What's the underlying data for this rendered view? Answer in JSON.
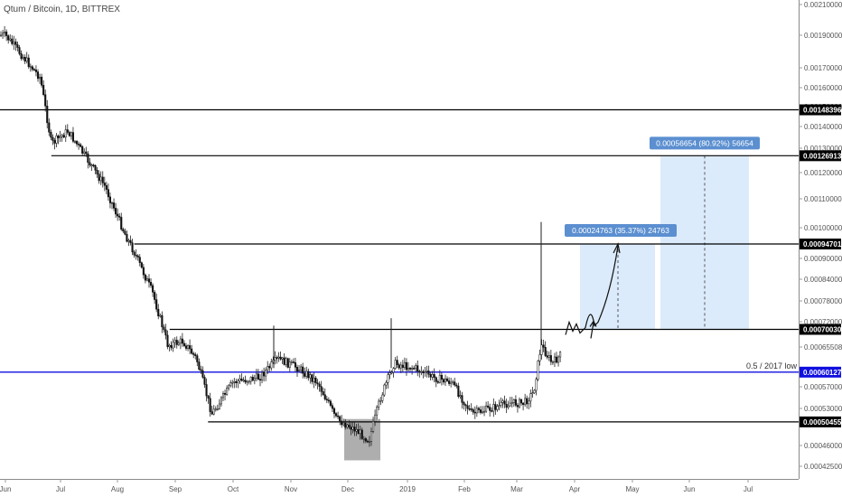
{
  "header": {
    "title": "Qtum / Bitcoin, 1D, BITTREX"
  },
  "chart_data": {
    "type": "candlestick",
    "title": "Qtum / Bitcoin, 1D, BITTREX",
    "x_ticks": [
      "Jun",
      "Jul",
      "Aug",
      "Sep",
      "Oct",
      "Nov",
      "Dec",
      "2019",
      "Feb",
      "Mar",
      "Apr",
      "May",
      "Jun",
      "Jul"
    ],
    "y_ticks": [
      "0.00210000",
      "0.00190000",
      "0.00170000",
      "0.00160000",
      "0.00150000",
      "0.00140000",
      "0.00130000",
      "0.00120000",
      "0.00110000",
      "0.00100000",
      "0.00090000",
      "0.00084000",
      "0.00078000",
      "0.00072000",
      "0.00065508",
      "0.00057000",
      "0.00053000",
      "0.00046000",
      "0.00042500"
    ],
    "levels": [
      {
        "label": "0.00148396",
        "y": 0.00148396,
        "color": "#000000",
        "start": "Jun"
      },
      {
        "label": "0.00126913",
        "y": 0.00126913,
        "color": "#000000",
        "start": "Jul"
      },
      {
        "label": "0.00094701",
        "y": 0.00094701,
        "color": "#000000",
        "start": "Aug"
      },
      {
        "label": "0.00070030",
        "y": 0.0007003,
        "color": "#000000",
        "start": "Sep"
      },
      {
        "label": "0.00060127",
        "y": 0.00060127,
        "color": "#1010e0",
        "start": "Jun"
      },
      {
        "label": "0.00050455",
        "y": 0.00050455,
        "color": "#000000",
        "start": "Sep"
      }
    ],
    "annotations": {
      "level_note": "0.5 / 2017 low",
      "target1": "0.00024763 (35.37%) 24763",
      "target2": "0.00056654 (80.92%) 56654"
    },
    "series": [
      {
        "x": "2018-06-01",
        "close": 0.0019
      },
      {
        "x": "2018-06-20",
        "close": 0.00165
      },
      {
        "x": "2018-06-26",
        "close": 0.00132
      },
      {
        "x": "2018-07-05",
        "close": 0.00138
      },
      {
        "x": "2018-07-15",
        "close": 0.00126
      },
      {
        "x": "2018-07-25",
        "close": 0.00115
      },
      {
        "x": "2018-08-05",
        "close": 0.00098
      },
      {
        "x": "2018-08-10",
        "close": 0.00092
      },
      {
        "x": "2018-08-20",
        "close": 0.0008
      },
      {
        "x": "2018-08-28",
        "close": 0.00066
      },
      {
        "x": "2018-09-05",
        "close": 0.00067
      },
      {
        "x": "2018-09-12",
        "close": 0.00063
      },
      {
        "x": "2018-09-20",
        "close": 0.00052
      },
      {
        "x": "2018-10-01",
        "close": 0.00058
      },
      {
        "x": "2018-10-15",
        "close": 0.00059
      },
      {
        "x": "2018-10-25",
        "close": 0.00063
      },
      {
        "x": "2018-11-05",
        "close": 0.00061
      },
      {
        "x": "2018-11-15",
        "close": 0.00058
      },
      {
        "x": "2018-11-25",
        "close": 0.00051
      },
      {
        "x": "2018-12-05",
        "close": 0.00049
      },
      {
        "x": "2018-12-12",
        "close": 0.00047
      },
      {
        "x": "2018-12-18",
        "close": 0.00055
      },
      {
        "x": "2018-12-25",
        "close": 0.00062
      },
      {
        "x": "2019-01-05",
        "close": 0.00061
      },
      {
        "x": "2019-01-15",
        "close": 0.00059
      },
      {
        "x": "2019-01-25",
        "close": 0.00058
      },
      {
        "x": "2019-02-05",
        "close": 0.00052
      },
      {
        "x": "2019-02-15",
        "close": 0.00053
      },
      {
        "x": "2019-02-25",
        "close": 0.00054
      },
      {
        "x": "2019-03-05",
        "close": 0.00054
      },
      {
        "x": "2019-03-10",
        "close": 0.00056
      },
      {
        "x": "2019-03-14",
        "close": 0.00066
      },
      {
        "x": "2019-03-20",
        "close": 0.00062
      },
      {
        "x": "2019-03-25",
        "close": 0.00064
      }
    ]
  }
}
